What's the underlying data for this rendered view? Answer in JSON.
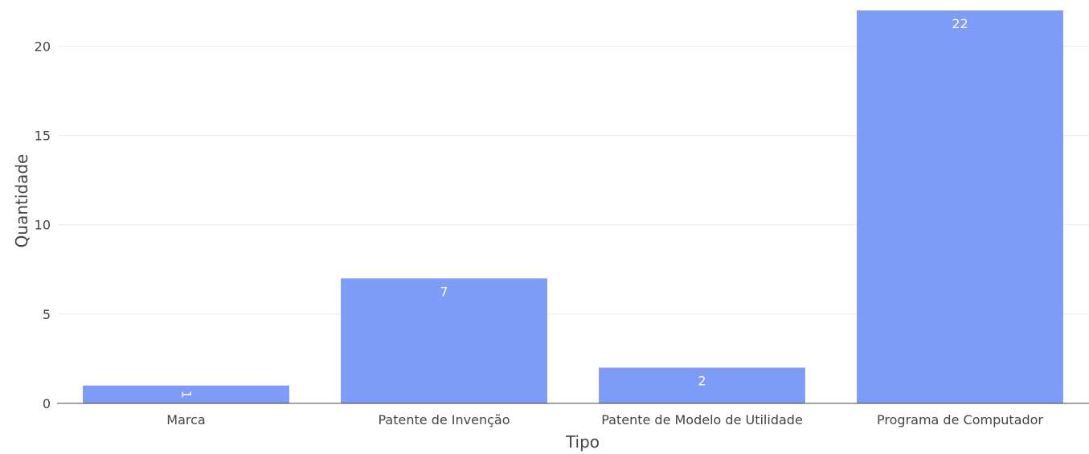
{
  "chart_data": {
    "type": "bar",
    "categories": [
      "Marca",
      "Patente de Invenção",
      "Patente de Modelo de Utilidade",
      "Programa de Computador"
    ],
    "values": [
      1,
      7,
      2,
      22
    ],
    "data_labels": [
      "1",
      "7",
      "2",
      "22"
    ],
    "xlabel": "Tipo",
    "ylabel": "Quantidade",
    "ylim": [
      0,
      22
    ],
    "yticks": [
      "0",
      "5",
      "10",
      "15",
      "20"
    ],
    "grid": true,
    "bar_color": "#7e9bf7",
    "gridline_color": "#ebebeb",
    "axis_line_color": "#444444",
    "text_color": "#444444"
  }
}
